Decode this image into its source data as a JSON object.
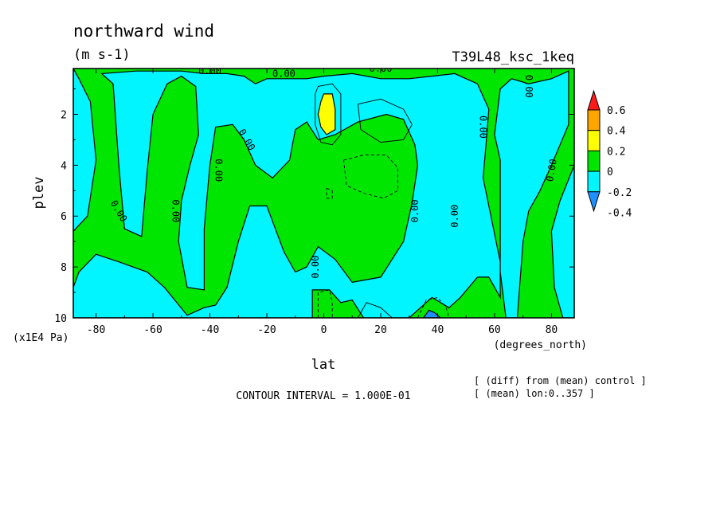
{
  "chart_data": {
    "type": "heatmap",
    "title": "northward wind",
    "units": "(m s-1)",
    "experiment": "T39L48_ksc_1keq",
    "xlabel": "lat",
    "xunits": "(degrees_north)",
    "ylabel": "plev",
    "yunits": "(x1E4 Pa)",
    "xlim": [
      -88,
      88
    ],
    "ylim": [
      10,
      0.2
    ],
    "xticks": [
      -80,
      -60,
      -40,
      -20,
      0,
      20,
      40,
      60,
      80
    ],
    "xtick_labels": [
      "-80",
      "-60",
      "-40",
      "-20",
      "0",
      "20",
      "40",
      "60",
      "80"
    ],
    "yticks": [
      2,
      4,
      6,
      8,
      10
    ],
    "ytick_labels": [
      "2",
      "4",
      "6",
      "8",
      "10"
    ],
    "contour_interval_text": "CONTOUR INTERVAL = 1.000E-01",
    "notes": [
      "[ (diff) from (mean) control ]",
      "[ (mean) lon:0..357 ]"
    ],
    "colorbar": {
      "levels": [
        -0.4,
        -0.2,
        0,
        0.2,
        0.4,
        0.6
      ],
      "level_labels": [
        "-0.4",
        "-0.2",
        "0",
        "0.2",
        "0.4",
        "0.6"
      ],
      "colors": [
        "#1e90ff",
        "#00f5ff",
        "#00e600",
        "#ffff00",
        "#ffa500",
        "#ff1a1a"
      ]
    },
    "contour_labels": [
      {
        "text": "0.00",
        "lat": -40,
        "plev": 0.3,
        "rot": 0
      },
      {
        "text": "0.00",
        "lat": -14,
        "plev": 0.4,
        "rot": 0
      },
      {
        "text": "0.00",
        "lat": 20,
        "plev": 0.2,
        "rot": 0
      },
      {
        "text": "0.00",
        "lat": 72,
        "plev": 0.9,
        "rot": 90
      },
      {
        "text": "0.00",
        "lat": 56,
        "plev": 2.5,
        "rot": 90
      },
      {
        "text": "0.00",
        "lat": -27,
        "plev": 3.0,
        "rot": 60
      },
      {
        "text": "0.00",
        "lat": -37,
        "plev": 4.2,
        "rot": 90
      },
      {
        "text": "0.00",
        "lat": 80,
        "plev": 4.2,
        "rot": -80
      },
      {
        "text": "0.00",
        "lat": -72,
        "plev": 5.8,
        "rot": 60
      },
      {
        "text": "0.00",
        "lat": -52,
        "plev": 5.8,
        "rot": 90
      },
      {
        "text": "0.00",
        "lat": 32,
        "plev": 5.8,
        "rot": -90
      },
      {
        "text": "0.00",
        "lat": 46,
        "plev": 6.0,
        "rot": -90
      },
      {
        "text": "0.00",
        "lat": -3,
        "plev": 8.0,
        "rot": -90
      }
    ],
    "regions_lat_plev": [
      {
        "level": "neg",
        "path": [
          [
            -88,
            0.2
          ],
          [
            -88,
            6.6
          ],
          [
            -83,
            6.0
          ],
          [
            -80,
            3.8
          ],
          [
            -82,
            1.5
          ],
          [
            -86,
            0.6
          ],
          [
            -88,
            0.2
          ]
        ]
      },
      {
        "level": "neg",
        "path": [
          [
            -78,
            0.4
          ],
          [
            -74,
            0.8
          ],
          [
            -72,
            4.0
          ],
          [
            -70,
            6.5
          ],
          [
            -64,
            6.8
          ],
          [
            -62,
            4.2
          ],
          [
            -60,
            2.0
          ],
          [
            -55,
            0.8
          ],
          [
            -50,
            0.5
          ],
          [
            -45,
            0.9
          ],
          [
            -44,
            2.8
          ],
          [
            -47,
            4.0
          ],
          [
            -50,
            5.4
          ],
          [
            -51,
            7.0
          ],
          [
            -48,
            8.8
          ],
          [
            -42,
            8.9
          ],
          [
            -42,
            6.5
          ],
          [
            -40,
            4.0
          ],
          [
            -38,
            2.5
          ],
          [
            -32,
            2.4
          ],
          [
            -28,
            3.0
          ],
          [
            -24,
            4.0
          ],
          [
            -18,
            4.5
          ],
          [
            -12,
            3.8
          ],
          [
            -10,
            2.6
          ],
          [
            -6,
            2.3
          ],
          [
            -2,
            3.0
          ],
          [
            4,
            2.8
          ],
          [
            12,
            2.3
          ],
          [
            22,
            2.0
          ],
          [
            28,
            2.2
          ],
          [
            32,
            3.2
          ],
          [
            33,
            4.0
          ],
          [
            31,
            5.5
          ],
          [
            28,
            7.0
          ],
          [
            20,
            8.4
          ],
          [
            10,
            8.6
          ],
          [
            4,
            7.7
          ],
          [
            -2,
            7.2
          ],
          [
            -6,
            8.0
          ],
          [
            -10,
            8.2
          ],
          [
            -14,
            7.4
          ],
          [
            -20,
            5.6
          ],
          [
            -26,
            5.6
          ],
          [
            -30,
            7.0
          ],
          [
            -34,
            8.8
          ],
          [
            -38,
            9.5
          ],
          [
            -42,
            9.6
          ],
          [
            -48,
            9.9
          ],
          [
            -56,
            8.8
          ],
          [
            -62,
            8.2
          ],
          [
            -72,
            7.8
          ],
          [
            -80,
            7.5
          ],
          [
            -86,
            8.2
          ],
          [
            -88,
            8.8
          ],
          [
            -88,
            10
          ],
          [
            -4,
            10
          ],
          [
            -4,
            8.9
          ],
          [
            2,
            8.9
          ],
          [
            6,
            9.4
          ],
          [
            10,
            9.3
          ],
          [
            14,
            10
          ],
          [
            30,
            10
          ],
          [
            38,
            9.2
          ],
          [
            44,
            9.6
          ],
          [
            48,
            9.2
          ],
          [
            54,
            8.4
          ],
          [
            58,
            8.4
          ],
          [
            62,
            9.2
          ],
          [
            62,
            7.8
          ],
          [
            58,
            5.6
          ],
          [
            56,
            4.5
          ],
          [
            57,
            3.2
          ],
          [
            58,
            1.8
          ],
          [
            54,
            0.8
          ],
          [
            46,
            0.4
          ],
          [
            38,
            0.5
          ],
          [
            30,
            0.6
          ],
          [
            20,
            0.6
          ],
          [
            10,
            0.4
          ],
          [
            0,
            0.5
          ],
          [
            -6,
            0.6
          ],
          [
            -10,
            0.6
          ],
          [
            -14,
            0.6
          ],
          [
            -20,
            0.6
          ],
          [
            -24,
            0.8
          ],
          [
            -28,
            0.5
          ],
          [
            -34,
            0.4
          ],
          [
            -42,
            0.4
          ],
          [
            -50,
            0.3
          ],
          [
            -58,
            0.3
          ],
          [
            -66,
            0.3
          ],
          [
            -78,
            0.4
          ]
        ]
      },
      {
        "level": "neg",
        "path": [
          [
            62,
            1.0
          ],
          [
            60,
            2.8
          ],
          [
            62,
            3.8
          ],
          [
            62,
            8.2
          ],
          [
            64,
            10
          ],
          [
            68,
            10
          ],
          [
            70,
            7.0
          ],
          [
            72,
            5.8
          ],
          [
            76,
            5.0
          ],
          [
            80,
            4.0
          ],
          [
            86,
            2.4
          ],
          [
            86,
            0.3
          ],
          [
            80,
            0.6
          ],
          [
            72,
            0.8
          ],
          [
            66,
            0.6
          ],
          [
            62,
            1.0
          ]
        ]
      },
      {
        "level": "neg",
        "path": [
          [
            88,
            4.0
          ],
          [
            83,
            5.4
          ],
          [
            80,
            6.6
          ],
          [
            81,
            8.8
          ],
          [
            84,
            10
          ],
          [
            88,
            10
          ],
          [
            88,
            4.0
          ]
        ]
      },
      {
        "level": "pos",
        "path": [
          [
            -1,
            1.5
          ],
          [
            0,
            1.2
          ],
          [
            3,
            1.2
          ],
          [
            4,
            1.8
          ],
          [
            4,
            2.6
          ],
          [
            1,
            2.8
          ],
          [
            -1,
            2.5
          ],
          [
            -2,
            2.0
          ],
          [
            -1,
            1.5
          ]
        ]
      },
      {
        "level": "neg2",
        "path": [
          [
            35,
            10
          ],
          [
            37,
            9.7
          ],
          [
            39,
            9.8
          ],
          [
            41,
            10
          ],
          [
            35,
            10
          ]
        ]
      }
    ],
    "contour_lines_lat_plev": [
      {
        "style": "solid",
        "path": [
          [
            -3,
            1.2
          ],
          [
            -2,
            0.9
          ],
          [
            3,
            0.8
          ],
          [
            6,
            1.2
          ],
          [
            6,
            2.8
          ],
          [
            3,
            3.2
          ],
          [
            -1,
            3.1
          ],
          [
            -3,
            2.4
          ],
          [
            -3,
            1.2
          ]
        ]
      },
      {
        "style": "solid",
        "path": [
          [
            12,
            1.6
          ],
          [
            20,
            1.4
          ],
          [
            28,
            1.8
          ],
          [
            31,
            2.4
          ],
          [
            28,
            3.0
          ],
          [
            20,
            3.1
          ],
          [
            13,
            2.6
          ],
          [
            12,
            1.6
          ]
        ]
      },
      {
        "style": "dashed",
        "path": [
          [
            7,
            3.8
          ],
          [
            14,
            3.6
          ],
          [
            22,
            3.6
          ],
          [
            26,
            4.1
          ],
          [
            26,
            5.0
          ],
          [
            21,
            5.3
          ],
          [
            14,
            5.1
          ],
          [
            8,
            4.8
          ],
          [
            7,
            3.8
          ]
        ]
      },
      {
        "style": "dashed",
        "path": [
          [
            1,
            4.9
          ],
          [
            3,
            5.0
          ],
          [
            3,
            5.3
          ],
          [
            1,
            5.3
          ],
          [
            1,
            4.9
          ]
        ]
      },
      {
        "style": "dashed",
        "path": [
          [
            -2,
            10
          ],
          [
            -2,
            9.0
          ],
          [
            2,
            8.9
          ],
          [
            3,
            9.4
          ],
          [
            3,
            10
          ]
        ]
      },
      {
        "style": "dashed",
        "path": [
          [
            33,
            10
          ],
          [
            36,
            9.3
          ],
          [
            40,
            9.2
          ],
          [
            43,
            9.6
          ],
          [
            44,
            10
          ]
        ]
      },
      {
        "style": "solid",
        "path": [
          [
            12,
            10
          ],
          [
            15,
            9.4
          ],
          [
            20,
            9.6
          ],
          [
            24,
            10
          ]
        ]
      }
    ]
  }
}
